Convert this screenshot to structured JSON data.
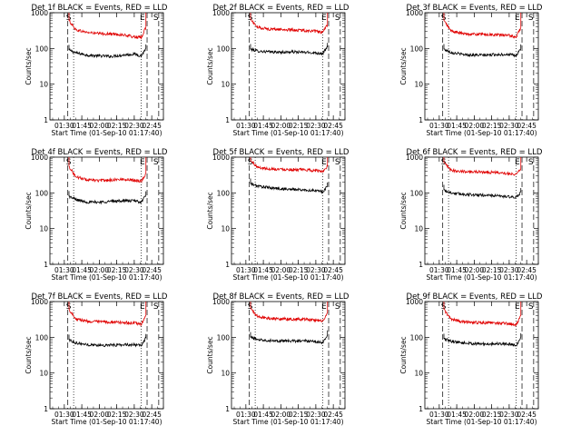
{
  "chart_data": [
    {
      "type": "line",
      "title": "Det 1f BLACK = Events, RED = LLD",
      "xlabel": "Start Time (01-Sep-10 01:17:40)",
      "ylabel": "Counts/sec",
      "x_tick_labels": [
        "01:30",
        "01:45",
        "02:00",
        "02:15",
        "02:30",
        "02:45"
      ],
      "y_tick_labels": [
        "1",
        "10",
        "100",
        "1000"
      ],
      "ylim": [
        1,
        1000
      ],
      "yscale": "log",
      "xlim": [
        "01:17:40",
        "02:55"
      ],
      "markers": [
        "S",
        "E",
        "S"
      ],
      "series": [
        {
          "color": "#000000",
          "x": [
            "01:34",
            "01:40",
            "01:50",
            "02:00",
            "02:10",
            "02:20",
            "02:30",
            "02:36",
            "02:40"
          ],
          "values": [
            90,
            75,
            65,
            62,
            60,
            65,
            70,
            62,
            100
          ]
        },
        {
          "color": "#e00000",
          "x": [
            "01:34",
            "01:40",
            "01:50",
            "02:00",
            "02:10",
            "02:20",
            "02:30",
            "02:36",
            "02:40"
          ],
          "values": [
            600,
            330,
            280,
            260,
            255,
            240,
            210,
            200,
            400
          ]
        }
      ]
    },
    {
      "type": "line",
      "title": "Det 2f BLACK = Events, RED = LLD",
      "xlabel": "Start Time (01-Sep-10 01:17:40)",
      "ylabel": "Counts/sec",
      "x_tick_labels": [
        "01:30",
        "01:45",
        "02:00",
        "02:15",
        "02:30",
        "02:45"
      ],
      "y_tick_labels": [
        "1",
        "10",
        "100",
        "1000"
      ],
      "ylim": [
        1,
        1000
      ],
      "yscale": "log",
      "xlim": [
        "01:17:40",
        "02:55"
      ],
      "markers": [
        "S",
        "E",
        "S"
      ],
      "series": [
        {
          "color": "#000000",
          "x": [
            "01:34",
            "01:40",
            "01:50",
            "02:00",
            "02:10",
            "02:20",
            "02:30",
            "02:36",
            "02:40"
          ],
          "values": [
            95,
            85,
            80,
            78,
            80,
            78,
            75,
            72,
            110
          ]
        },
        {
          "color": "#e00000",
          "x": [
            "01:34",
            "01:40",
            "01:50",
            "02:00",
            "02:10",
            "02:20",
            "02:30",
            "02:36",
            "02:40"
          ],
          "values": [
            650,
            390,
            350,
            340,
            330,
            320,
            300,
            280,
            450
          ]
        }
      ]
    },
    {
      "type": "line",
      "title": "Det 3f BLACK = Events, RED = LLD",
      "xlabel": "Start Time (01-Sep-10 01:17:40)",
      "ylabel": "Counts/sec",
      "x_tick_labels": [
        "01:30",
        "01:45",
        "02:00",
        "02:15",
        "02:30",
        "02:45"
      ],
      "y_tick_labels": [
        "1",
        "10",
        "100",
        "1000"
      ],
      "ylim": [
        1,
        1000
      ],
      "yscale": "log",
      "xlim": [
        "01:17:40",
        "02:55"
      ],
      "markers": [
        "S",
        "E",
        "S"
      ],
      "series": [
        {
          "color": "#000000",
          "x": [
            "01:34",
            "01:40",
            "01:50",
            "02:00",
            "02:10",
            "02:20",
            "02:30",
            "02:36",
            "02:40"
          ],
          "values": [
            95,
            78,
            68,
            65,
            65,
            68,
            68,
            62,
            100
          ]
        },
        {
          "color": "#e00000",
          "x": [
            "01:34",
            "01:40",
            "01:50",
            "02:00",
            "02:10",
            "02:20",
            "02:30",
            "02:36",
            "02:40"
          ],
          "values": [
            600,
            310,
            260,
            250,
            245,
            240,
            230,
            210,
            380
          ]
        }
      ]
    },
    {
      "type": "line",
      "title": "Det 4f BLACK = Events, RED = LLD",
      "xlabel": "Start Time (01-Sep-10 01:17:40)",
      "ylabel": "Counts/sec",
      "x_tick_labels": [
        "01:30",
        "01:45",
        "02:00",
        "02:15",
        "02:30",
        "02:45"
      ],
      "y_tick_labels": [
        "1",
        "10",
        "100",
        "1000"
      ],
      "ylim": [
        1,
        1000
      ],
      "yscale": "log",
      "xlim": [
        "01:17:40",
        "02:55"
      ],
      "markers": [
        "S",
        "E",
        "S"
      ],
      "series": [
        {
          "color": "#000000",
          "x": [
            "01:34",
            "01:40",
            "01:50",
            "02:00",
            "02:10",
            "02:20",
            "02:30",
            "02:36",
            "02:40"
          ],
          "values": [
            80,
            65,
            55,
            55,
            58,
            60,
            60,
            55,
            85
          ]
        },
        {
          "color": "#e00000",
          "x": [
            "01:34",
            "01:40",
            "01:50",
            "02:00",
            "02:10",
            "02:20",
            "02:30",
            "02:36",
            "02:40"
          ],
          "values": [
            550,
            280,
            230,
            220,
            230,
            240,
            230,
            210,
            350
          ]
        }
      ]
    },
    {
      "type": "line",
      "title": "Det 5f BLACK = Events, RED = LLD",
      "xlabel": "Start Time (01-Sep-10 01:17:40)",
      "ylabel": "Counts/sec",
      "x_tick_labels": [
        "01:30",
        "01:45",
        "02:00",
        "02:15",
        "02:30",
        "02:45"
      ],
      "y_tick_labels": [
        "1",
        "10",
        "100",
        "1000"
      ],
      "ylim": [
        1,
        1000
      ],
      "yscale": "log",
      "xlim": [
        "01:17:40",
        "02:55"
      ],
      "markers": [
        "S",
        "E",
        "S"
      ],
      "series": [
        {
          "color": "#000000",
          "x": [
            "01:34",
            "01:40",
            "01:50",
            "02:00",
            "02:10",
            "02:20",
            "02:30",
            "02:36",
            "02:40"
          ],
          "values": [
            180,
            155,
            140,
            130,
            125,
            120,
            115,
            108,
            150
          ]
        },
        {
          "color": "#e00000",
          "x": [
            "01:34",
            "01:40",
            "01:50",
            "02:00",
            "02:10",
            "02:20",
            "02:30",
            "02:36",
            "02:40"
          ],
          "values": [
            800,
            520,
            470,
            460,
            450,
            440,
            420,
            400,
            550
          ]
        }
      ]
    },
    {
      "type": "line",
      "title": "Det 6f BLACK = Events, RED = LLD",
      "xlabel": "Start Time (01-Sep-10 01:17:40)",
      "ylabel": "Counts/sec",
      "x_tick_labels": [
        "01:30",
        "01:45",
        "02:00",
        "02:15",
        "02:30",
        "02:45"
      ],
      "y_tick_labels": [
        "1",
        "10",
        "100",
        "1000"
      ],
      "ylim": [
        1,
        1000
      ],
      "yscale": "log",
      "xlim": [
        "01:17:40",
        "02:55"
      ],
      "markers": [
        "S",
        "E",
        "S"
      ],
      "series": [
        {
          "color": "#000000",
          "x": [
            "01:34",
            "01:40",
            "01:50",
            "02:00",
            "02:10",
            "02:20",
            "02:30",
            "02:36",
            "02:40"
          ],
          "values": [
            120,
            100,
            92,
            88,
            86,
            82,
            78,
            72,
            105
          ]
        },
        {
          "color": "#e00000",
          "x": [
            "01:34",
            "01:40",
            "01:50",
            "02:00",
            "02:10",
            "02:20",
            "02:30",
            "02:36",
            "02:40"
          ],
          "values": [
            700,
            430,
            400,
            390,
            380,
            370,
            350,
            330,
            480
          ]
        }
      ]
    },
    {
      "type": "line",
      "title": "Det 7f BLACK = Events, RED = LLD",
      "xlabel": "Start Time (01-Sep-10 01:17:40)",
      "ylabel": "Counts/sec",
      "x_tick_labels": [
        "01:30",
        "01:45",
        "02:00",
        "02:15",
        "02:30",
        "02:45"
      ],
      "y_tick_labels": [
        "1",
        "10",
        "100",
        "1000"
      ],
      "ylim": [
        1,
        1000
      ],
      "yscale": "log",
      "xlim": [
        "01:17:40",
        "02:55"
      ],
      "markers": [
        "S",
        "E",
        "S"
      ],
      "series": [
        {
          "color": "#000000",
          "x": [
            "01:34",
            "01:40",
            "01:50",
            "02:00",
            "02:10",
            "02:20",
            "02:30",
            "02:36",
            "02:40"
          ],
          "values": [
            85,
            70,
            62,
            60,
            60,
            62,
            62,
            58,
            95
          ]
        },
        {
          "color": "#e00000",
          "x": [
            "01:34",
            "01:40",
            "01:50",
            "02:00",
            "02:10",
            "02:20",
            "02:30",
            "02:36",
            "02:40"
          ],
          "values": [
            600,
            330,
            280,
            270,
            265,
            260,
            250,
            230,
            420
          ]
        }
      ]
    },
    {
      "type": "line",
      "title": "Det 8f BLACK = Events, RED = LLD",
      "xlabel": "Start Time (01-Sep-10 01:17:40)",
      "ylabel": "Counts/sec",
      "x_tick_labels": [
        "01:30",
        "01:45",
        "02:00",
        "02:15",
        "02:30",
        "02:45"
      ],
      "y_tick_labels": [
        "1",
        "10",
        "100",
        "1000"
      ],
      "ylim": [
        1,
        1000
      ],
      "yscale": "log",
      "xlim": [
        "01:17:40",
        "02:55"
      ],
      "markers": [
        "S",
        "E",
        "S"
      ],
      "series": [
        {
          "color": "#000000",
          "x": [
            "01:34",
            "01:40",
            "01:50",
            "02:00",
            "02:10",
            "02:20",
            "02:30",
            "02:36",
            "02:40"
          ],
          "values": [
            100,
            88,
            82,
            80,
            78,
            80,
            75,
            70,
            120
          ]
        },
        {
          "color": "#e00000",
          "x": [
            "01:34",
            "01:40",
            "01:50",
            "02:00",
            "02:10",
            "02:20",
            "02:30",
            "02:36",
            "02:40"
          ],
          "values": [
            650,
            380,
            340,
            330,
            320,
            320,
            300,
            280,
            480
          ]
        }
      ]
    },
    {
      "type": "line",
      "title": "Det 9f BLACK = Events, RED = LLD",
      "xlabel": "Start Time (01-Sep-10 01:17:40)",
      "ylabel": "Counts/sec",
      "x_tick_labels": [
        "01:30",
        "01:45",
        "02:00",
        "02:15",
        "02:30",
        "02:45"
      ],
      "y_tick_labels": [
        "1",
        "10",
        "100",
        "1000"
      ],
      "ylim": [
        1,
        1000
      ],
      "yscale": "log",
      "xlim": [
        "01:17:40",
        "02:55"
      ],
      "markers": [
        "S",
        "E",
        "S"
      ],
      "series": [
        {
          "color": "#000000",
          "x": [
            "01:34",
            "01:40",
            "01:50",
            "02:00",
            "02:10",
            "02:20",
            "02:30",
            "02:36",
            "02:40"
          ],
          "values": [
            90,
            78,
            70,
            66,
            65,
            66,
            65,
            60,
            100
          ]
        },
        {
          "color": "#e00000",
          "x": [
            "01:34",
            "01:40",
            "01:50",
            "02:00",
            "02:10",
            "02:20",
            "02:30",
            "02:36",
            "02:40"
          ],
          "values": [
            600,
            320,
            270,
            260,
            255,
            250,
            240,
            220,
            400
          ]
        }
      ]
    }
  ]
}
